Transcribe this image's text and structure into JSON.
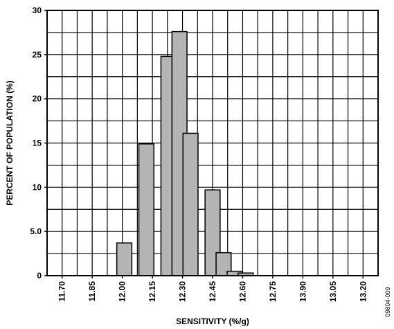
{
  "chart_data": {
    "type": "bar",
    "xlabel": "SENSITIVITY (%/g)",
    "ylabel": "PERCENT OF POPULATION (%)",
    "ylim": [
      0,
      30
    ],
    "y_ticks": [
      "0",
      "5.0",
      "10",
      "15",
      "20",
      "25",
      "30"
    ],
    "x_tick_labels": [
      "11.70",
      "11.85",
      "12.00",
      "12.15",
      "12.30",
      "12.45",
      "12.60",
      "12.75",
      "13.90",
      "13.05",
      "13.20"
    ],
    "grid": true,
    "bar_color": "#b4b4b4",
    "bins": [
      {
        "center": "12.05",
        "value": 3.7
      },
      {
        "center": "12.15",
        "value": 14.9
      },
      {
        "center": "12.25",
        "value": 24.8
      },
      {
        "center": "12.30",
        "value": 27.6
      },
      {
        "center": "12.35",
        "value": 16.1
      },
      {
        "center": "12.45",
        "value": 9.7
      },
      {
        "center": "12.50",
        "value": 2.6
      },
      {
        "center": "12.55",
        "value": 0.5
      },
      {
        "center": "12.60",
        "value": 0.3
      }
    ]
  },
  "figure_id": "09804-009"
}
